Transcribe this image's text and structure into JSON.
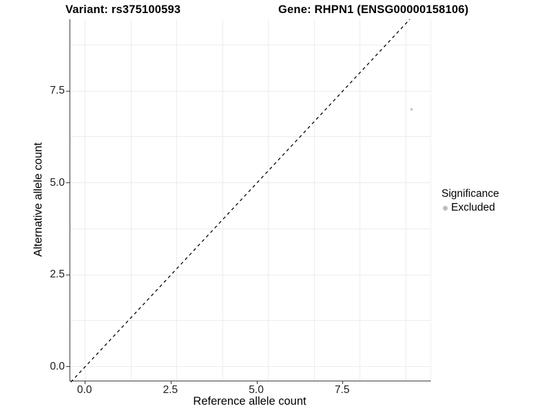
{
  "title": {
    "variant": "Variant: rs375100593",
    "gene": "Gene: RHPN1 (ENSG00000158106)"
  },
  "axes": {
    "x_label": "Reference allele count",
    "y_label": "Alternative allele count"
  },
  "legend": {
    "title": "Significance",
    "items": [
      {
        "label": "Excluded",
        "color": "#bdbdbd"
      }
    ]
  },
  "colors": {
    "axis_line": "#3c3c3c",
    "grid": "#ececec",
    "dashed_line": "#000000",
    "point": "#c4c4c4",
    "tick_text": "#1a1a1a"
  },
  "chart_data": {
    "type": "scatter",
    "title": "Variant: rs375100593 | Gene: RHPN1 (ENSG00000158106)",
    "xlabel": "Reference allele count",
    "ylabel": "Alternative allele count",
    "xlim": [
      -0.45,
      10.1
    ],
    "ylim": [
      -0.4,
      9.45
    ],
    "x_ticks": [
      0.0,
      2.5,
      5.0,
      7.5
    ],
    "y_ticks": [
      0.0,
      2.5,
      5.0,
      7.5
    ],
    "x_tick_labels": [
      "0.0",
      "2.5",
      "5.0",
      "7.5"
    ],
    "y_tick_labels": [
      "0.0",
      "2.5",
      "5.0",
      "7.5"
    ],
    "x_gridlines": [
      0,
      1.333,
      2.667,
      4,
      5.333,
      6.667,
      8,
      9.333
    ],
    "y_gridlines": [
      0,
      1.25,
      2.5,
      3.75,
      5,
      6.25,
      7.5,
      8.75
    ],
    "grid": true,
    "legend_position": "right",
    "legend_title": "Significance",
    "series": [
      {
        "name": "Excluded",
        "color": "#bdbdbd",
        "points": [
          {
            "x": 9.5,
            "y": 7.0
          }
        ]
      }
    ],
    "reference_line": {
      "type": "identity y=x",
      "style": "dashed",
      "color": "#000000"
    }
  }
}
